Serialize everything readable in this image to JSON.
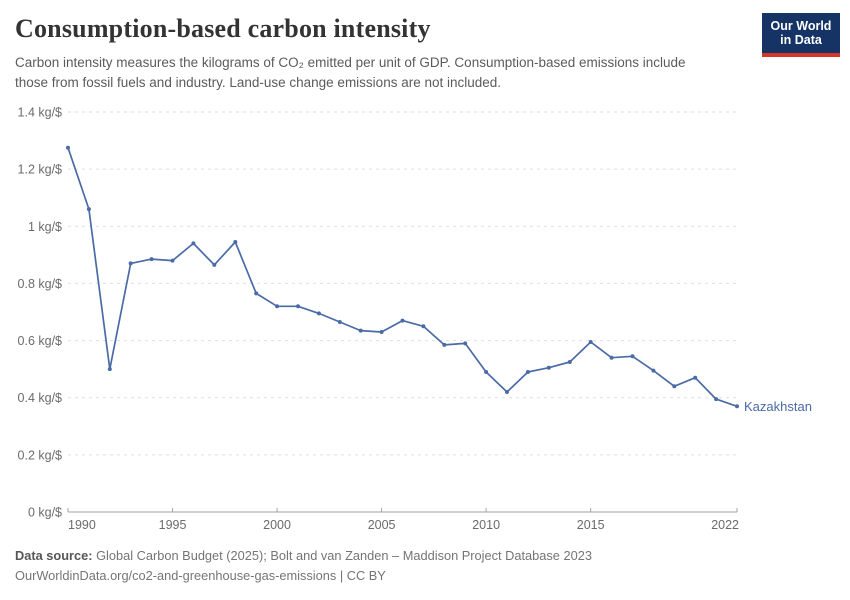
{
  "header": {
    "title": "Consumption-based carbon intensity",
    "subtitle": "Carbon intensity measures the kilograms of CO₂ emitted per unit of GDP. Consumption-based emissions include those from fossil fuels and industry. Land-use change emissions are not included.",
    "logo": {
      "line1": "Our World",
      "line2": "in Data",
      "bg_color": "#163366",
      "bar_color": "#d7342a"
    }
  },
  "chart_data": {
    "type": "line",
    "title": "Consumption-based carbon intensity",
    "unit": "kg/$",
    "xlim": [
      1990,
      2022
    ],
    "ylim": [
      0,
      1.4
    ],
    "grid": "horizontal-dashed",
    "legend_position": "end-of-line-label",
    "x": [
      1990,
      1991,
      1992,
      1993,
      1994,
      1995,
      1996,
      1997,
      1998,
      1999,
      2000,
      2001,
      2002,
      2003,
      2004,
      2005,
      2006,
      2007,
      2008,
      2009,
      2010,
      2011,
      2012,
      2013,
      2014,
      2015,
      2016,
      2017,
      2018,
      2019,
      2020,
      2021,
      2022
    ],
    "series": [
      {
        "name": "Kazakhstan",
        "color": "#4a6ba5",
        "values": [
          1.275,
          1.06,
          0.5,
          0.87,
          0.885,
          0.88,
          0.94,
          0.865,
          0.945,
          0.765,
          0.72,
          0.72,
          0.695,
          0.665,
          0.635,
          0.63,
          0.67,
          0.65,
          0.585,
          0.59,
          0.49,
          0.42,
          0.49,
          0.505,
          0.525,
          0.595,
          0.54,
          0.545,
          0.495,
          0.44,
          0.47,
          0.395,
          0.37
        ]
      }
    ],
    "yticks": [
      {
        "v": 0,
        "label": "0 kg/$"
      },
      {
        "v": 0.2,
        "label": "0.2 kg/$"
      },
      {
        "v": 0.4,
        "label": "0.4 kg/$"
      },
      {
        "v": 0.6,
        "label": "0.6 kg/$"
      },
      {
        "v": 0.8,
        "label": "0.8 kg/$"
      },
      {
        "v": 1,
        "label": "1 kg/$"
      },
      {
        "v": 1.2,
        "label": "1.2 kg/$"
      },
      {
        "v": 1.4,
        "label": "1.4 kg/$"
      }
    ],
    "xticks": [
      {
        "x": 1990,
        "label": "1990"
      },
      {
        "x": 1995,
        "label": "1995"
      },
      {
        "x": 2000,
        "label": "2000"
      },
      {
        "x": 2005,
        "label": "2005"
      },
      {
        "x": 2010,
        "label": "2010"
      },
      {
        "x": 2015,
        "label": "2015"
      },
      {
        "x": 2022,
        "label": "2022"
      }
    ]
  },
  "colors": {
    "grid": "#dedede",
    "axis": "#a3a3a3",
    "tick_label": "#6b6b6b"
  },
  "footer": {
    "source_label": "Data source:",
    "source_text": "Global Carbon Budget (2025); Bolt and van Zanden – Maddison Project Database 2023",
    "license_line": "OurWorldinData.org/co2-and-greenhouse-gas-emissions | CC BY"
  }
}
